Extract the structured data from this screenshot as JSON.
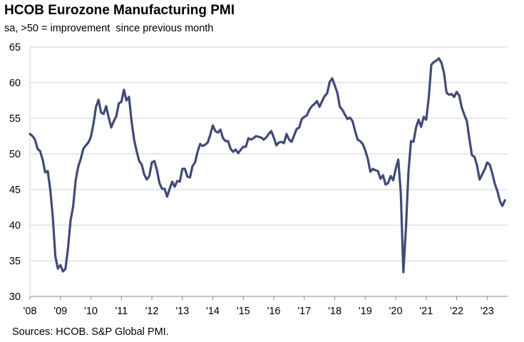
{
  "chart_data": {
    "type": "line",
    "title": "HCOB Eurozone Manufacturing PMI",
    "subtitle": "sa, >50 = improvement  since previous month",
    "source": "Sources: HCOB. S&P Global PMI.",
    "xlabel": "",
    "ylabel": "",
    "ylim": [
      30,
      65
    ],
    "yticks": [
      30,
      35,
      40,
      45,
      50,
      55,
      60,
      65
    ],
    "xlim": [
      2008.0,
      2023.67
    ],
    "xticks": [
      {
        "label": "'08",
        "year": 2008
      },
      {
        "label": "'09",
        "year": 2009
      },
      {
        "label": "'10",
        "year": 2010
      },
      {
        "label": "'11",
        "year": 2011
      },
      {
        "label": "'12",
        "year": 2012
      },
      {
        "label": "'13",
        "year": 2013
      },
      {
        "label": "'14",
        "year": 2014
      },
      {
        "label": "'15",
        "year": 2015
      },
      {
        "label": "'16",
        "year": 2016
      },
      {
        "label": "'17",
        "year": 2017
      },
      {
        "label": "'18",
        "year": 2018
      },
      {
        "label": "'19",
        "year": 2019
      },
      {
        "label": "'20",
        "year": 2020
      },
      {
        "label": "'21",
        "year": 2021
      },
      {
        "label": "'22",
        "year": 2022
      },
      {
        "label": "'23",
        "year": 2023
      }
    ],
    "grid": true,
    "colors": {
      "line": "#414b77",
      "grid": "#d0d0d0",
      "axis": "#888888"
    },
    "series": [
      {
        "name": "HCOB Eurozone Manufacturing PMI",
        "start": "2008-01",
        "values": [
          52.8,
          52.5,
          52.0,
          50.7,
          50.4,
          49.2,
          47.4,
          47.6,
          45.0,
          41.1,
          35.6,
          33.9,
          34.4,
          33.5,
          33.9,
          36.8,
          40.7,
          42.6,
          46.3,
          48.2,
          49.3,
          50.7,
          51.2,
          51.6,
          52.4,
          54.2,
          56.6,
          57.6,
          55.8,
          55.6,
          56.7,
          55.1,
          53.7,
          54.6,
          55.3,
          57.1,
          57.3,
          59.0,
          57.5,
          58.0,
          54.6,
          52.0,
          50.4,
          49.0,
          48.5,
          47.1,
          46.4,
          46.9,
          48.8,
          49.0,
          47.7,
          45.9,
          45.1,
          45.1,
          44.0,
          45.1,
          46.1,
          45.4,
          46.2,
          46.1,
          47.9,
          47.9,
          46.8,
          46.7,
          48.3,
          48.8,
          50.3,
          51.4,
          51.1,
          51.3,
          51.6,
          52.7,
          54.0,
          53.2,
          53.0,
          53.4,
          52.2,
          51.8,
          51.8,
          50.7,
          50.3,
          50.6,
          50.1,
          50.6,
          51.0,
          51.0,
          52.2,
          52.0,
          52.2,
          52.5,
          52.4,
          52.3,
          52.0,
          52.3,
          52.8,
          53.2,
          52.3,
          51.2,
          51.6,
          51.7,
          51.5,
          52.8,
          52.0,
          51.7,
          52.6,
          53.5,
          53.7,
          54.9,
          55.2,
          55.4,
          56.2,
          56.7,
          57.0,
          57.4,
          56.6,
          57.4,
          58.1,
          58.5,
          60.1,
          60.6,
          59.6,
          58.6,
          56.6,
          56.2,
          55.5,
          54.9,
          55.1,
          54.6,
          53.2,
          52.0,
          51.8,
          51.4,
          50.5,
          49.3,
          47.5,
          47.9,
          47.7,
          47.6,
          46.5,
          47.0,
          45.7,
          45.9,
          46.9,
          46.3,
          47.9,
          49.2,
          44.5,
          33.4,
          39.4,
          47.4,
          51.8,
          51.7,
          53.7,
          54.8,
          53.8,
          55.2,
          54.8,
          57.9,
          62.5,
          62.9,
          63.1,
          63.4,
          62.8,
          61.4,
          58.6,
          58.3,
          58.4,
          58.0,
          58.7,
          58.2,
          56.5,
          55.5,
          54.6,
          52.1,
          49.8,
          49.6,
          48.4,
          46.4,
          47.1,
          47.8,
          48.8,
          48.5,
          47.3,
          45.8,
          44.8,
          43.4,
          42.7,
          43.5
        ]
      }
    ]
  }
}
